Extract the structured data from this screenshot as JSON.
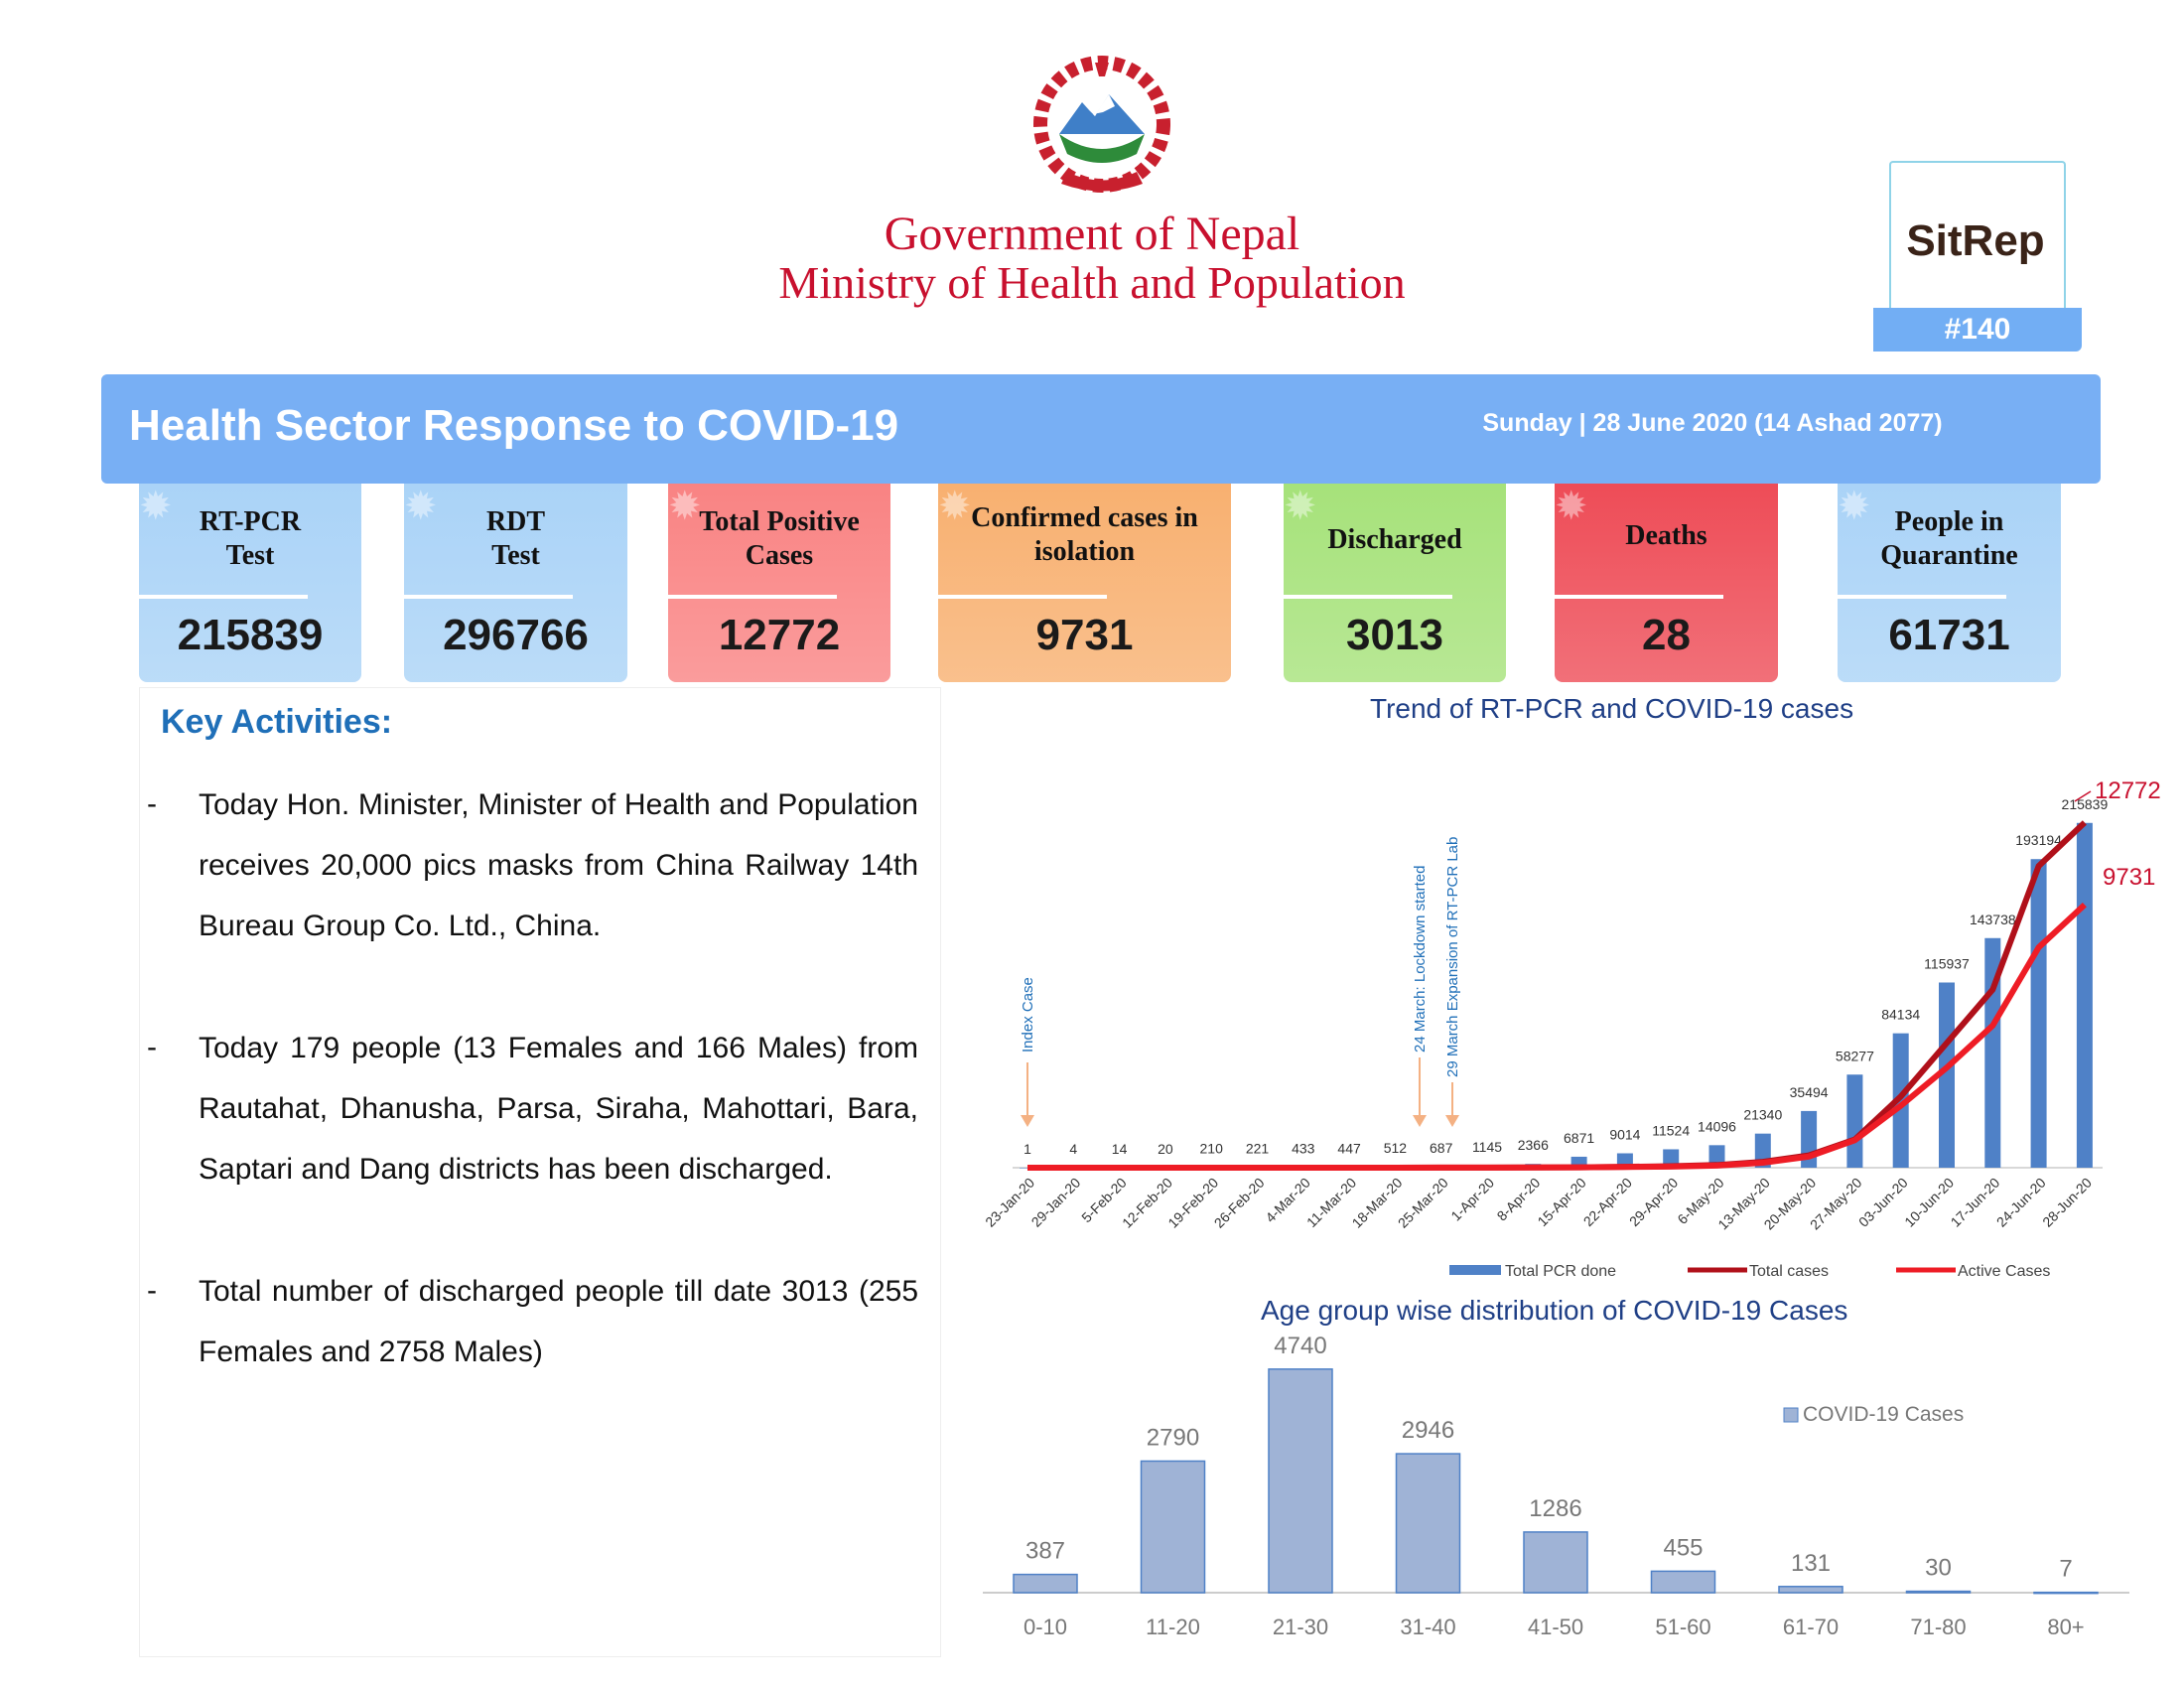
{
  "header": {
    "gov_line1": "Government of Nepal",
    "gov_line2": "Ministry of Health and Population",
    "sitrep_label": "SitRep",
    "sitrep_number": "#140"
  },
  "banner": {
    "title": "Health Sector Response to COVID-19",
    "date": "Sunday | 28 June 2020 (14 Ashad 2077)"
  },
  "cards": [
    {
      "label_line1": "RT-PCR",
      "label_line2": "Test",
      "value": "215839",
      "color": "#aad3f7"
    },
    {
      "label_line1": "RDT",
      "label_line2": "Test",
      "value": "296766",
      "color": "#aad3f7"
    },
    {
      "label_line1": "Total Positive",
      "label_line2": "Cases",
      "value": "12772",
      "color": "#f98383"
    },
    {
      "label_line1": "Confirmed cases in",
      "label_line2": "isolation",
      "value": "9731",
      "color": "#f8b070"
    },
    {
      "label_line1": "Discharged",
      "label_line2": "",
      "value": "3013",
      "color": "#a6e27a"
    },
    {
      "label_line1": "Deaths",
      "label_line2": "",
      "value": "28",
      "color": "#ee4c57"
    },
    {
      "label_line1": "People in",
      "label_line2": "Quarantine",
      "value": "61731",
      "color": "#aad3f7"
    }
  ],
  "key_activities": {
    "title": "Key Activities:",
    "bullet": "-",
    "items": [
      "Today Hon. Minister, Minister of Health and Population receives 20,000 pics masks from China Railway 14th Bureau Group Co. Ltd., China.",
      "Today 179 people (13 Females and 166 Males) from Rautahat, Dhanusha, Parsa, Siraha, Mahottari, Bara, Saptari and Dang districts has been discharged.",
      "Total number of discharged people till date 3013 (255 Females and 2758 Males)"
    ]
  },
  "chart_data": [
    {
      "type": "bar",
      "title": "Trend of RT-PCR and COVID-19 cases",
      "categories": [
        "23-Jan-20",
        "29-Jan-20",
        "5-Feb-20",
        "12-Feb-20",
        "19-Feb-20",
        "26-Feb-20",
        "4-Mar-20",
        "11-Mar-20",
        "18-Mar-20",
        "25-Mar-20",
        "1-Apr-20",
        "8-Apr-20",
        "15-Apr-20",
        "22-Apr-20",
        "29-Apr-20",
        "6-May-20",
        "13-May-20",
        "20-May-20",
        "27-May-20",
        "03-Jun-20",
        "10-Jun-20",
        "17-Jun-20",
        "24-Jun-20",
        "28-Jun-20"
      ],
      "series": [
        {
          "name": "Total PCR done",
          "kind": "bar",
          "color": "#4f81c7",
          "values": [
            1,
            4,
            14,
            20,
            210,
            221,
            433,
            447,
            512,
            687,
            1145,
            2366,
            6871,
            9014,
            11524,
            14096,
            21340,
            35494,
            58277,
            84134,
            115937,
            143738,
            193194,
            215839
          ]
        },
        {
          "name": "Total  cases",
          "kind": "line",
          "color": "#b0101a",
          "values": [
            1,
            1,
            1,
            1,
            1,
            1,
            1,
            1,
            1,
            3,
            5,
            9,
            16,
            31,
            57,
            99,
            217,
            457,
            1042,
            2634,
            4614,
            6591,
            11162,
            12772
          ]
        },
        {
          "name": "Active Cases",
          "kind": "line",
          "color": "#ee1c25",
          "values": [
            1,
            0,
            0,
            0,
            0,
            0,
            0,
            0,
            0,
            3,
            5,
            8,
            15,
            27,
            41,
            77,
            182,
            413,
            1016,
            2291,
            3704,
            5260,
            8150,
            9731
          ]
        }
      ],
      "end_labels": [
        "12772",
        "9731"
      ],
      "annotations": [
        "Index Case",
        "24 March: Lockdown started",
        "29 March Expansion of RT-PCR Lab"
      ],
      "ylim": [
        0,
        230000
      ],
      "legend": "bottom"
    },
    {
      "type": "bar",
      "title": "Age group wise distribution of COVID-19 Cases",
      "categories": [
        "0-10",
        "11-20",
        "21-30",
        "31-40",
        "41-50",
        "51-60",
        "61-70",
        "71-80",
        "80+"
      ],
      "series": [
        {
          "name": "COVID-19 Cases",
          "color": "#9fb3d6",
          "values": [
            387,
            2790,
            4740,
            2946,
            1286,
            455,
            131,
            30,
            7
          ]
        }
      ],
      "ylim": [
        0,
        4800
      ],
      "legend": "top-right"
    }
  ]
}
